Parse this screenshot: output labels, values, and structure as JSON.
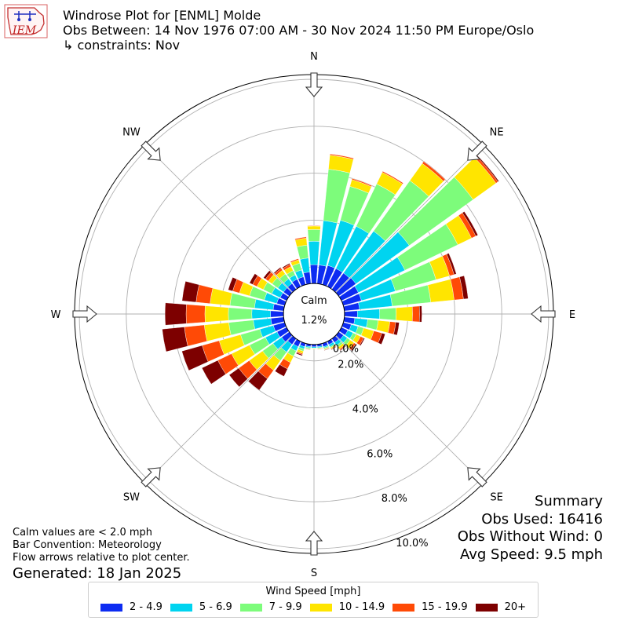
{
  "header": {
    "title": "Windrose Plot for [ENML] Molde",
    "subtitle": "Obs Between: 14 Nov 1976 07:00 AM - 30 Nov 2024 11:50 PM Europe/Oslo",
    "constraint": "↳ constraints: Nov"
  },
  "logo_text": "IEM",
  "notes": {
    "line1": "Calm values are < 2.0 mph",
    "line2": "Bar Convention: Meteorology",
    "line3": "Flow arrows relative to plot center.",
    "generated": "Generated: 18 Jan 2025"
  },
  "summary": {
    "title": "Summary",
    "obs_used": "Obs Used: 16416",
    "obs_without_wind": "Obs Without Wind: 0",
    "avg_speed": "Avg Speed: 9.5 mph"
  },
  "calm": {
    "label": "Calm",
    "value": "1.2%"
  },
  "legend": {
    "title": "Wind Speed [mph]",
    "items": [
      {
        "label": "2 - 4.9",
        "color": "#0d2cf2"
      },
      {
        "label": "5 - 6.9",
        "color": "#00d4f0"
      },
      {
        "label": "7 - 9.9",
        "color": "#7dfc7b"
      },
      {
        "label": "10 - 14.9",
        "color": "#ffe500"
      },
      {
        "label": "15 - 19.9",
        "color": "#ff4a06"
      },
      {
        "label": "20+",
        "color": "#7d0000"
      }
    ]
  },
  "chart_data": {
    "type": "windrose",
    "direction_labels": [
      "N",
      "NE",
      "E",
      "SE",
      "S",
      "SW",
      "W",
      "NW"
    ],
    "radial_tick_labels": [
      "0.0%",
      "2.0%",
      "4.0%",
      "6.0%",
      "8.0%",
      "10.0%"
    ],
    "radial_ticks": [
      0,
      2,
      4,
      6,
      8,
      10
    ],
    "r_max_percent": 10.2,
    "calm_radius_percent": 1.3,
    "bin_width_deg": 10,
    "series_names": [
      "2 - 4.9",
      "5 - 6.9",
      "7 - 9.9",
      "10 - 14.9",
      "15 - 19.9",
      "20+"
    ],
    "bars": [
      {
        "dir": 0,
        "values": [
          0.8,
          1.0,
          0.5,
          0.15,
          0.02,
          0.0
        ]
      },
      {
        "dir": 10,
        "values": [
          0.8,
          1.9,
          2.2,
          0.6,
          0.05,
          0.0
        ]
      },
      {
        "dir": 20,
        "values": [
          0.85,
          2.0,
          1.5,
          0.3,
          0.05,
          0.0
        ]
      },
      {
        "dir": 30,
        "values": [
          0.85,
          2.0,
          2.0,
          0.55,
          0.05,
          0.0
        ]
      },
      {
        "dir": 40,
        "values": [
          0.85,
          2.2,
          2.65,
          0.9,
          0.1,
          0.02
        ]
      },
      {
        "dir": 50,
        "values": [
          0.9,
          2.8,
          3.35,
          1.2,
          0.1,
          0.05
        ]
      },
      {
        "dir": 60,
        "values": [
          0.8,
          2.2,
          2.5,
          0.65,
          0.2,
          0.1
        ]
      },
      {
        "dir": 70,
        "values": [
          0.8,
          1.5,
          1.8,
          0.6,
          0.2,
          0.1
        ]
      },
      {
        "dir": 80,
        "values": [
          0.65,
          1.4,
          1.65,
          1.0,
          0.4,
          0.2
        ]
      },
      {
        "dir": 90,
        "values": [
          0.55,
          0.95,
          0.7,
          0.7,
          0.3,
          0.1
        ]
      },
      {
        "dir": 100,
        "values": [
          0.45,
          0.55,
          0.45,
          0.5,
          0.25,
          0.15
        ]
      },
      {
        "dir": 110,
        "values": [
          0.35,
          0.3,
          0.25,
          0.45,
          0.35,
          0.15
        ]
      },
      {
        "dir": 120,
        "values": [
          0.3,
          0.25,
          0.15,
          0.2,
          0.15,
          0.05
        ]
      },
      {
        "dir": 130,
        "values": [
          0.25,
          0.2,
          0.15,
          0.2,
          0.1,
          0.05
        ]
      },
      {
        "dir": 140,
        "values": [
          0.2,
          0.15,
          0.1,
          0.1,
          0.05,
          0.03
        ]
      },
      {
        "dir": 150,
        "values": [
          0.15,
          0.1,
          0.05,
          0.05,
          0.03,
          0.02
        ]
      },
      {
        "dir": 160,
        "values": [
          0.15,
          0.05,
          0.05,
          0.03,
          0.02,
          0.02
        ]
      },
      {
        "dir": 170,
        "values": [
          0.1,
          0.05,
          0.03,
          0.02,
          0.02,
          0.0
        ]
      },
      {
        "dir": 180,
        "values": [
          0.1,
          0.05,
          0.02,
          0.02,
          0.0,
          0.0
        ]
      },
      {
        "dir": 190,
        "values": [
          0.1,
          0.05,
          0.05,
          0.02,
          0.02,
          0.0
        ]
      },
      {
        "dir": 200,
        "values": [
          0.15,
          0.1,
          0.1,
          0.1,
          0.05,
          0.05
        ]
      },
      {
        "dir": 210,
        "values": [
          0.25,
          0.2,
          0.25,
          0.3,
          0.3,
          0.35
        ]
      },
      {
        "dir": 220,
        "values": [
          0.3,
          0.4,
          0.45,
          0.5,
          0.45,
          0.6
        ]
      },
      {
        "dir": 230,
        "values": [
          0.4,
          0.45,
          0.55,
          0.7,
          0.55,
          0.5
        ]
      },
      {
        "dir": 240,
        "values": [
          0.45,
          0.55,
          0.75,
          0.85,
          0.65,
          0.75
        ]
      },
      {
        "dir": 250,
        "values": [
          0.5,
          0.6,
          0.85,
          0.95,
          0.75,
          0.9
        ]
      },
      {
        "dir": 260,
        "values": [
          0.55,
          0.75,
          1.05,
          1.05,
          0.85,
          0.95
        ]
      },
      {
        "dir": 270,
        "values": [
          0.55,
          0.8,
          1.0,
          1.0,
          0.8,
          0.9
        ]
      },
      {
        "dir": 280,
        "values": [
          0.45,
          0.8,
          1.05,
          0.85,
          0.6,
          0.6
        ]
      },
      {
        "dir": 290,
        "values": [
          0.35,
          0.55,
          0.65,
          0.45,
          0.3,
          0.2
        ]
      },
      {
        "dir": 300,
        "values": [
          0.3,
          0.4,
          0.4,
          0.3,
          0.2,
          0.15
        ]
      },
      {
        "dir": 310,
        "values": [
          0.3,
          0.3,
          0.3,
          0.2,
          0.15,
          0.1
        ]
      },
      {
        "dir": 320,
        "values": [
          0.3,
          0.25,
          0.25,
          0.2,
          0.1,
          0.05
        ]
      },
      {
        "dir": 330,
        "values": [
          0.35,
          0.2,
          0.2,
          0.2,
          0.1,
          0.05
        ]
      },
      {
        "dir": 340,
        "values": [
          0.35,
          0.3,
          0.3,
          0.15,
          0.05,
          0.0
        ]
      },
      {
        "dir": 350,
        "values": [
          0.5,
          0.6,
          0.55,
          0.3,
          0.05,
          0.0
        ]
      }
    ]
  }
}
